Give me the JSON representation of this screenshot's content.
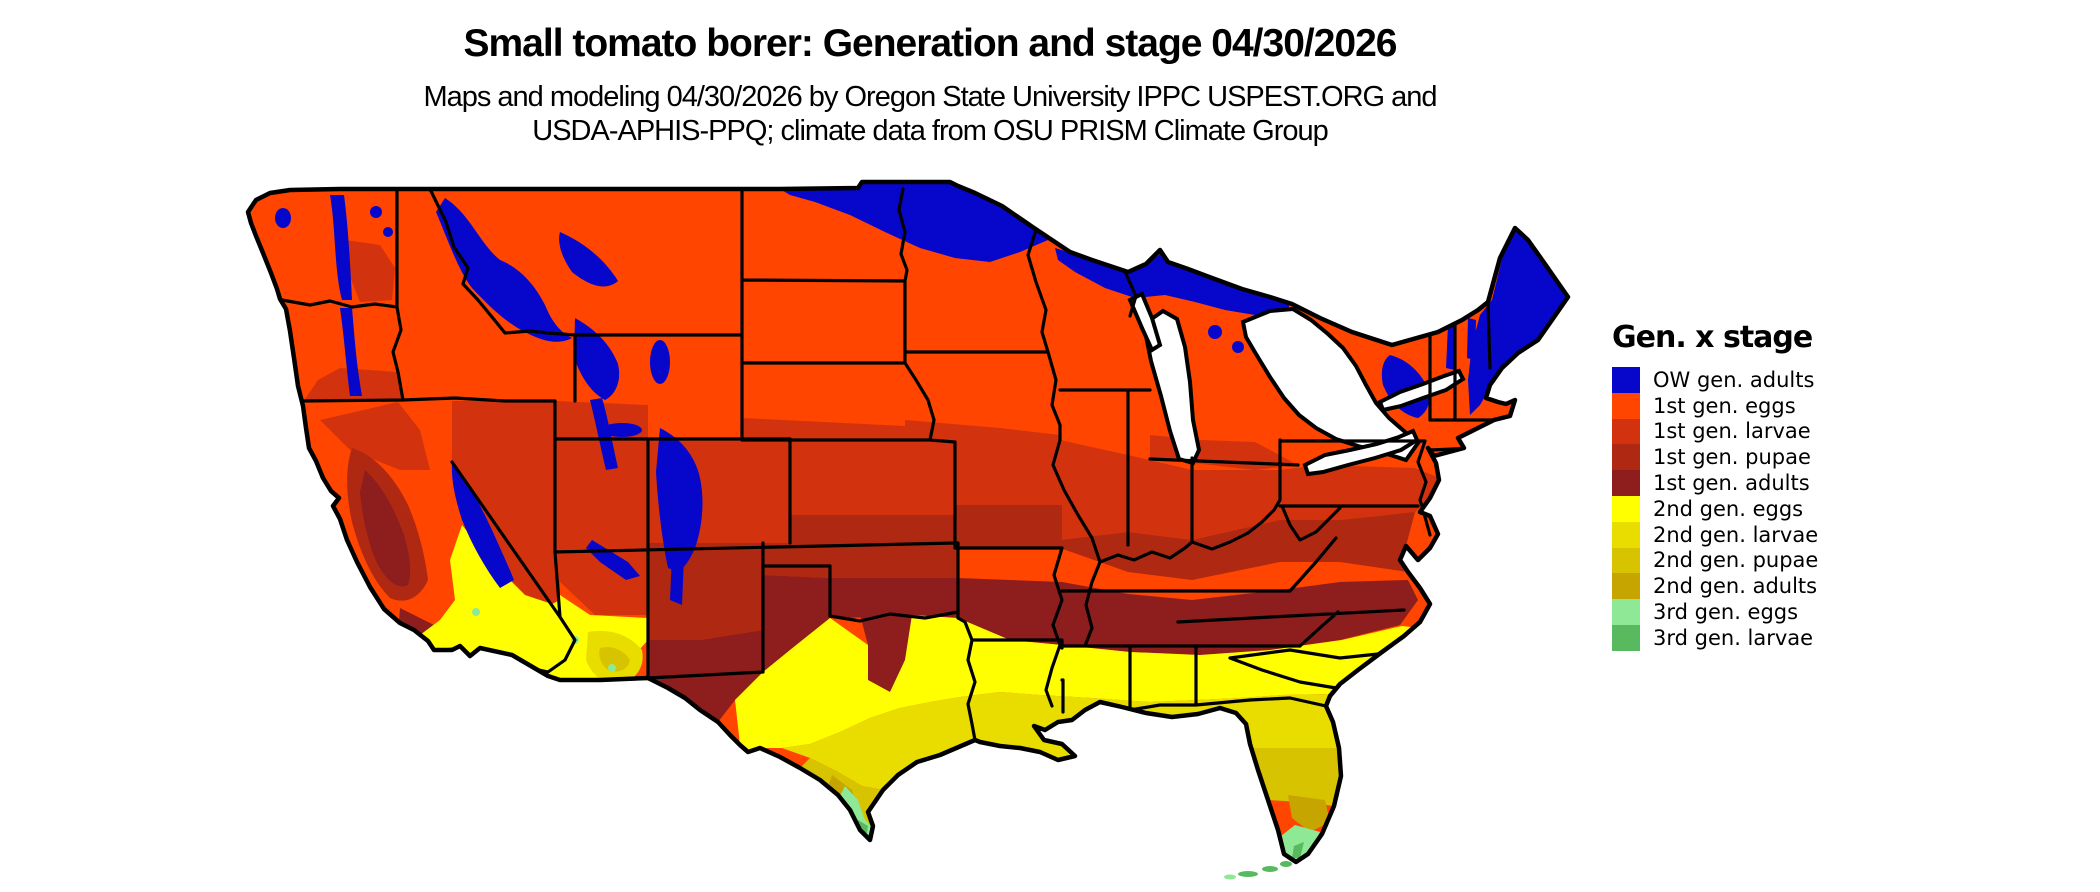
{
  "header": {
    "title": "Small tomato borer: Generation and stage 04/30/2026",
    "subtitle_line1": "Maps and modeling 04/30/2026 by Oregon State University IPPC USPEST.ORG and",
    "subtitle_line2": "USDA-APHIS-PPQ; climate data from OSU PRISM Climate Group"
  },
  "legend": {
    "title": "Gen. x stage",
    "items": [
      {
        "key": "ow_adults",
        "label": "OW gen. adults",
        "color": "#0707CC"
      },
      {
        "key": "g1_eggs",
        "label": "1st gen. eggs",
        "color": "#FF4500"
      },
      {
        "key": "g1_larvae",
        "label": "1st gen. larvae",
        "color": "#D2330E"
      },
      {
        "key": "g1_pupae",
        "label": "1st gen. pupae",
        "color": "#AF2912"
      },
      {
        "key": "g1_adults",
        "label": "1st gen. adults",
        "color": "#8E1D1D"
      },
      {
        "key": "g2_eggs",
        "label": "2nd gen. eggs",
        "color": "#FFFF00"
      },
      {
        "key": "g2_larvae",
        "label": "2nd gen. larvae",
        "color": "#E9DD00"
      },
      {
        "key": "g2_pupae",
        "label": "2nd gen. pupae",
        "color": "#D8C300"
      },
      {
        "key": "g2_adults",
        "label": "2nd gen. adults",
        "color": "#C7A500"
      },
      {
        "key": "g3_eggs",
        "label": "3rd gen. eggs",
        "color": "#8FE896"
      },
      {
        "key": "g3_larvae",
        "label": "3rd gen. larvae",
        "color": "#58B95E"
      }
    ]
  },
  "map": {
    "border_color": "#000000",
    "water_color": "#FFFFFF"
  }
}
